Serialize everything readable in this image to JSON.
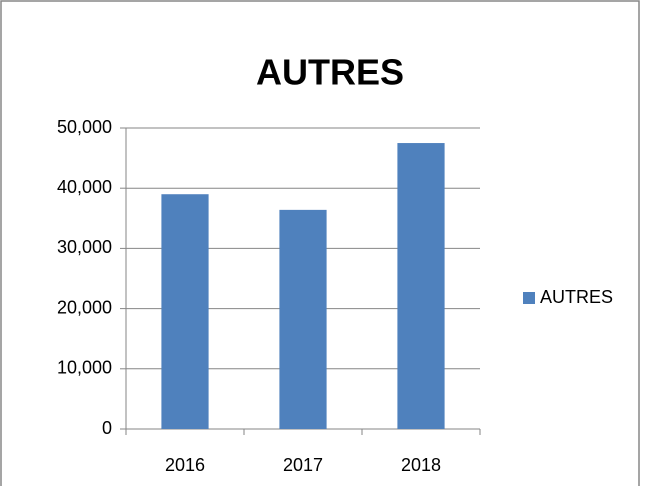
{
  "chart_data": {
    "type": "bar",
    "title": "AUTRES",
    "categories": [
      "2016",
      "2017",
      "2018"
    ],
    "series": [
      {
        "name": "AUTRES",
        "color": "#4f81bd",
        "values": [
          39000,
          36400,
          47500
        ]
      }
    ],
    "ylim": [
      0,
      50000
    ],
    "yticks": [
      0,
      {
        "value": 10000,
        "label": "10,000"
      },
      {
        "value": 20000,
        "label": "20,000"
      },
      {
        "value": 30000,
        "label": "30,000"
      },
      {
        "value": 40000,
        "label": "40,000"
      },
      {
        "value": 50000,
        "label": "50,000"
      }
    ],
    "grid": true,
    "legend": "right"
  }
}
